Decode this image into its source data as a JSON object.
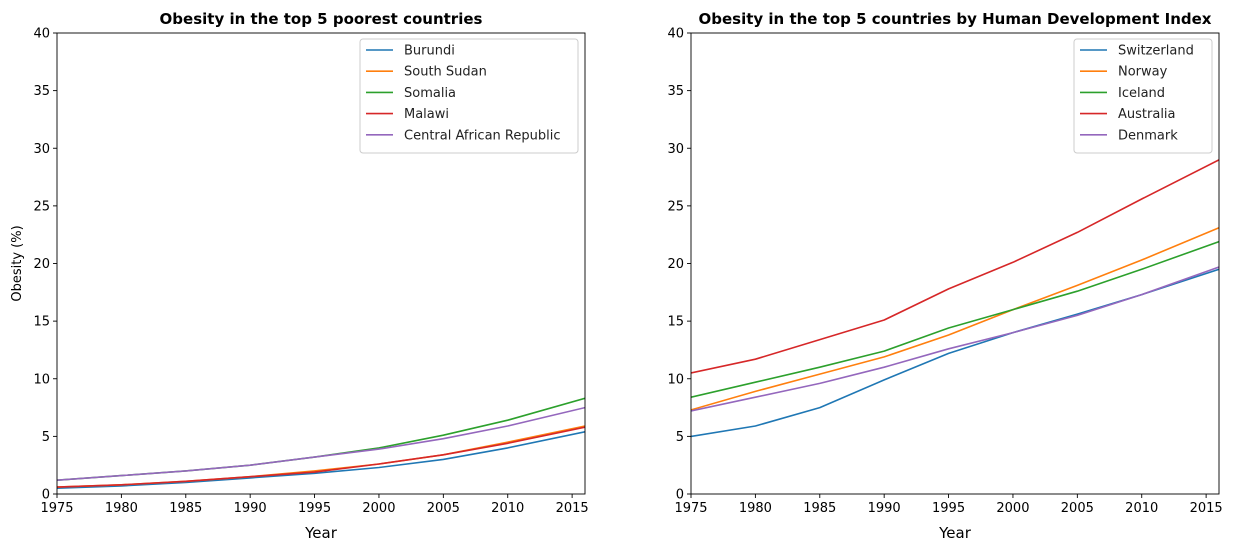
{
  "chart_data": [
    {
      "type": "line",
      "title": "Obesity in the top 5 poorest countries",
      "xlabel": "Year",
      "ylabel": "Obesity (%)",
      "xlim": [
        1975,
        2016
      ],
      "ylim": [
        0,
        40
      ],
      "xticks": [
        "1975",
        "1980",
        "1985",
        "1990",
        "1995",
        "2000",
        "2005",
        "2010",
        "2015"
      ],
      "yticks": [
        "0",
        "5",
        "10",
        "15",
        "20",
        "25",
        "30",
        "35",
        "40"
      ],
      "grid": false,
      "legend_position": "top-right",
      "x": [
        1975,
        1980,
        1985,
        1990,
        1995,
        2000,
        2005,
        2010,
        2016
      ],
      "series": [
        {
          "name": "Burundi",
          "color": "#1f77b4",
          "values": [
            0.5,
            0.7,
            1.0,
            1.4,
            1.8,
            2.3,
            3.0,
            4.0,
            5.4
          ]
        },
        {
          "name": "South Sudan",
          "color": "#ff7f0e",
          "values": [
            0.6,
            0.8,
            1.1,
            1.5,
            2.0,
            2.6,
            3.4,
            4.5,
            5.9
          ]
        },
        {
          "name": "Somalia",
          "color": "#2ca02c",
          "values": [
            1.2,
            1.6,
            2.0,
            2.5,
            3.2,
            4.0,
            5.1,
            6.4,
            8.3
          ]
        },
        {
          "name": "Malawi",
          "color": "#d62728",
          "values": [
            0.6,
            0.8,
            1.1,
            1.5,
            1.9,
            2.6,
            3.4,
            4.4,
            5.8
          ]
        },
        {
          "name": "Central African Republic",
          "color": "#9467bd",
          "values": [
            1.2,
            1.6,
            2.0,
            2.5,
            3.2,
            3.9,
            4.8,
            5.9,
            7.5
          ]
        }
      ]
    },
    {
      "type": "line",
      "title": "Obesity in the top 5 countries by Human Development Index",
      "xlabel": "Year",
      "ylabel": "",
      "xlim": [
        1975,
        2016
      ],
      "ylim": [
        0,
        40
      ],
      "xticks": [
        "1975",
        "1980",
        "1985",
        "1990",
        "1995",
        "2000",
        "2005",
        "2010",
        "2015"
      ],
      "yticks": [
        "0",
        "5",
        "10",
        "15",
        "20",
        "25",
        "30",
        "35",
        "40"
      ],
      "grid": false,
      "legend_position": "top-right",
      "x": [
        1975,
        1980,
        1985,
        1990,
        1995,
        2000,
        2005,
        2010,
        2016
      ],
      "series": [
        {
          "name": "Switzerland",
          "color": "#1f77b4",
          "values": [
            5.0,
            5.9,
            7.5,
            9.9,
            12.2,
            14.0,
            15.6,
            17.3,
            19.5
          ]
        },
        {
          "name": "Norway",
          "color": "#ff7f0e",
          "values": [
            7.3,
            8.9,
            10.4,
            11.9,
            13.8,
            16.0,
            18.1,
            20.3,
            23.1
          ]
        },
        {
          "name": "Iceland",
          "color": "#2ca02c",
          "values": [
            8.4,
            9.7,
            11.0,
            12.4,
            14.4,
            16.0,
            17.6,
            19.5,
            21.9
          ]
        },
        {
          "name": "Australia",
          "color": "#d62728",
          "values": [
            10.5,
            11.7,
            13.4,
            15.1,
            17.8,
            20.1,
            22.7,
            25.6,
            29.0
          ]
        },
        {
          "name": "Denmark",
          "color": "#9467bd",
          "values": [
            7.2,
            8.4,
            9.6,
            11.0,
            12.6,
            14.0,
            15.5,
            17.3,
            19.7
          ]
        }
      ]
    }
  ]
}
